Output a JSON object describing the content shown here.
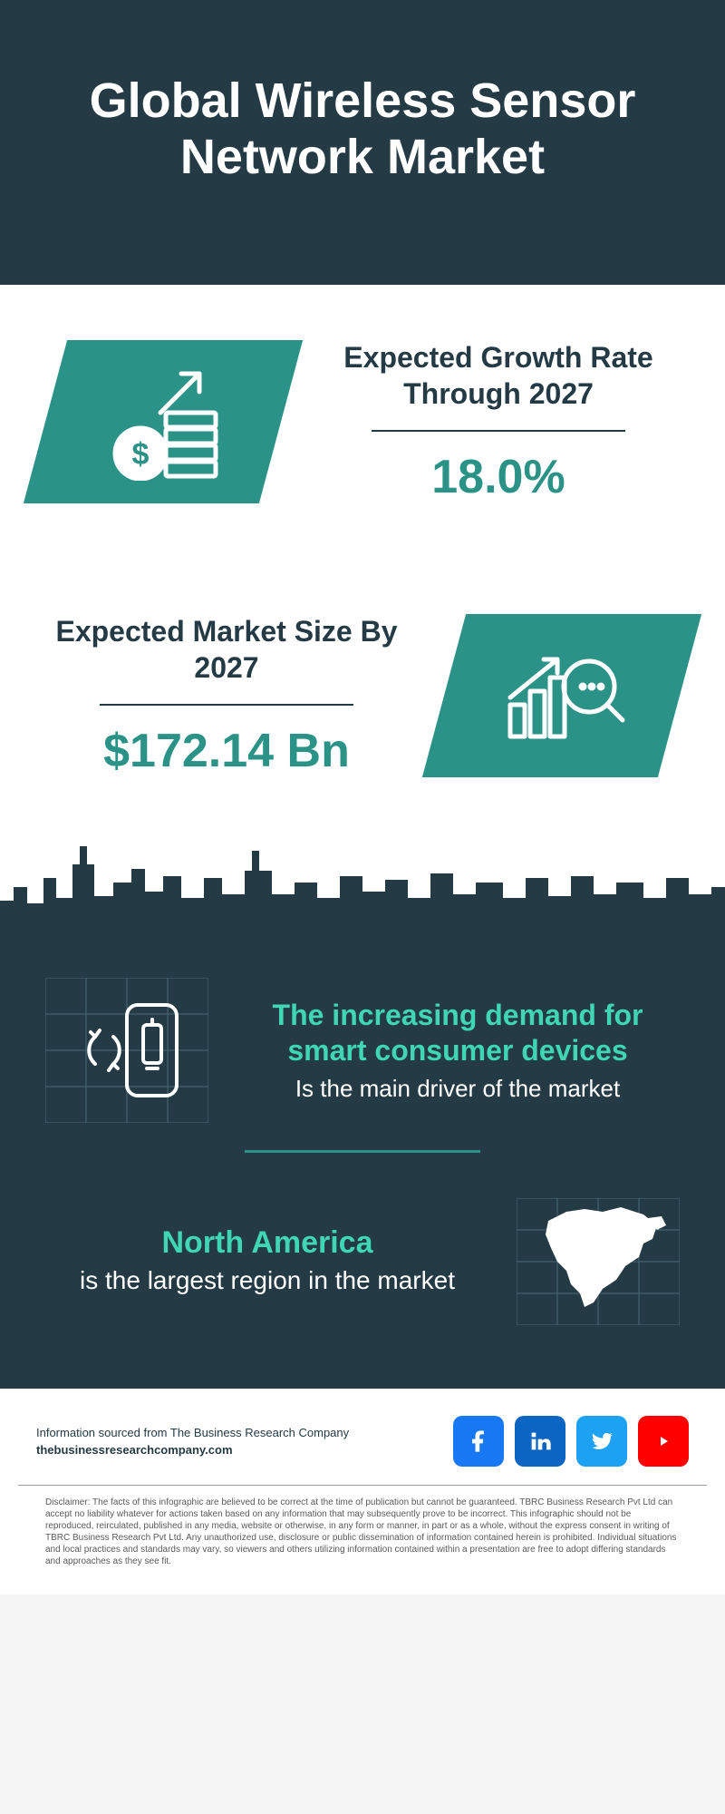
{
  "colors": {
    "dark_navy": "#243a45",
    "teal": "#2a9286",
    "mint": "#3fd6b3",
    "white": "#ffffff",
    "text_dark": "#243a45",
    "gray": "#5a5a5a",
    "facebook": "#1877f2",
    "linkedin": "#0a66c2",
    "twitter": "#1da1f2",
    "youtube": "#ff0000"
  },
  "header": {
    "title": "Global Wireless Sensor Network Market"
  },
  "growth": {
    "label": "Expected Growth Rate Through 2027",
    "value": "18.0%",
    "icon": "money-growth"
  },
  "size": {
    "label": "Expected Market Size By 2027",
    "value": "$172.14 Bn",
    "icon": "chart-analysis"
  },
  "driver": {
    "headline": "The increasing demand for smart consumer devices",
    "sub": "Is the main driver of the market",
    "icon": "phone-battery"
  },
  "region": {
    "headline": "North America",
    "sub": "is the largest region in the market",
    "icon": "north-america-map"
  },
  "footer": {
    "source_line": "Information sourced from The Business Research Company",
    "url": "thebusinessresearchcompany.com",
    "social": [
      {
        "name": "facebook",
        "glyph": "f"
      },
      {
        "name": "linkedin",
        "glyph": "in"
      },
      {
        "name": "twitter",
        "glyph": "t"
      },
      {
        "name": "youtube",
        "glyph": "▶"
      }
    ]
  },
  "disclaimer": "Disclaimer: The facts of this infographic are believed to be correct at the time of publication but cannot be guaranteed. TBRC Business Research Pvt Ltd can accept no liability whatever for actions taken based on any information that may subsequently prove to be incorrect. This infographic should not be reproduced, reirculated, published in any media, website or otherwise, in any form or manner, in part or as a whole, without the express consent in writing of TBRC Business Research Pvt Ltd. Any unauthorized use, disclosure or public dissemination of information contained herein is prohibited. Individual situations and local practices and standards may vary, so viewers and others utilizing information contained within a presentation are free to adopt differing standards and approaches as they see fit."
}
